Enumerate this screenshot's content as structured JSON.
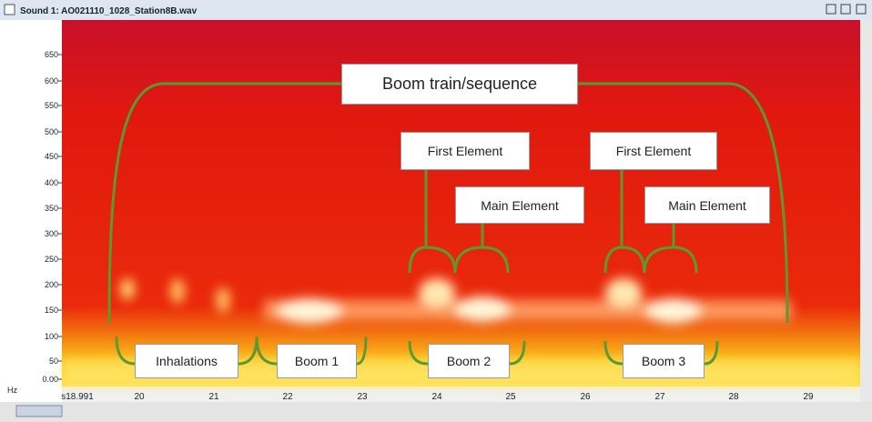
{
  "window": {
    "title": "Sound 1: AO021110_1028_Station8B.wav"
  },
  "y_axis": {
    "unit": "Hz",
    "labels": [
      "650",
      "600",
      "550",
      "500",
      "450",
      "400",
      "350",
      "300",
      "250",
      "200",
      "150",
      "100",
      "50",
      "0.00"
    ]
  },
  "x_axis": {
    "labels": [
      "s18.991",
      "20",
      "21",
      "22",
      "23",
      "24",
      "25",
      "26",
      "27",
      "28",
      "29"
    ]
  },
  "annotations": {
    "sequence": "Boom train/sequence",
    "elements": [
      {
        "first": "First Element",
        "main": "Main Element"
      },
      {
        "first": "First Element",
        "main": "Main Element"
      }
    ],
    "booms": [
      "Inhalations",
      "Boom 1",
      "Boom 2",
      "Boom 3"
    ]
  }
}
